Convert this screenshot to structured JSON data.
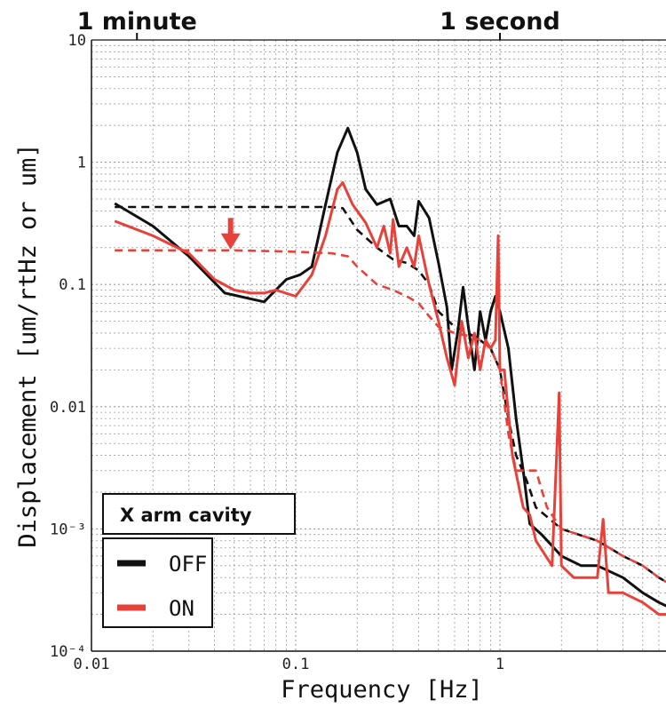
{
  "chart_data": {
    "type": "line",
    "title": "",
    "xlabel": "Frequency [Hz]",
    "ylabel": "Displacement [um/rtHz or um]",
    "x_scale": "log",
    "y_scale": "log",
    "xlim": [
      0.01,
      8
    ],
    "ylim": [
      0.0001,
      10
    ],
    "grid": true,
    "x_ticks": [
      {
        "value": 0.01,
        "label": "0.01"
      },
      {
        "value": 0.1,
        "label": "0.1"
      },
      {
        "value": 1,
        "label": "1"
      }
    ],
    "y_ticks": [
      {
        "value": 0.0001,
        "label": "10⁻⁴"
      },
      {
        "value": 0.001,
        "label": "10⁻³"
      },
      {
        "value": 0.01,
        "label": "0.01"
      },
      {
        "value": 0.1,
        "label": "0.1"
      },
      {
        "value": 1,
        "label": "1"
      },
      {
        "value": 10,
        "label": "10"
      }
    ],
    "top_annotations": [
      {
        "x": 0.0167,
        "label": "1 minute"
      },
      {
        "x": 1.0,
        "label": "1 second"
      }
    ],
    "legend": {
      "title": "X arm cavity",
      "placement": "bottom-left",
      "entries": [
        {
          "label": "OFF",
          "color": "#111111"
        },
        {
          "label": "ON",
          "color": "#e8413a"
        }
      ]
    },
    "arrow_annotation": {
      "x": 0.048,
      "y_from": 0.35,
      "y_to": 0.2,
      "color": "#e8413a"
    },
    "series": [
      {
        "color": "#111111",
        "style": "solid",
        "points": [
          [
            0.013,
            0.46
          ],
          [
            0.02,
            0.3
          ],
          [
            0.03,
            0.17
          ],
          [
            0.045,
            0.085
          ],
          [
            0.07,
            0.072
          ],
          [
            0.09,
            0.11
          ],
          [
            0.105,
            0.12
          ],
          [
            0.12,
            0.14
          ],
          [
            0.14,
            0.45
          ],
          [
            0.16,
            1.2
          ],
          [
            0.18,
            1.9
          ],
          [
            0.2,
            1.2
          ],
          [
            0.22,
            0.6
          ],
          [
            0.25,
            0.45
          ],
          [
            0.29,
            0.5
          ],
          [
            0.32,
            0.3
          ],
          [
            0.35,
            0.3
          ],
          [
            0.38,
            0.25
          ],
          [
            0.4,
            0.48
          ],
          [
            0.45,
            0.35
          ],
          [
            0.5,
            0.15
          ],
          [
            0.55,
            0.065
          ],
          [
            0.58,
            0.02
          ],
          [
            0.62,
            0.04
          ],
          [
            0.66,
            0.095
          ],
          [
            0.7,
            0.045
          ],
          [
            0.75,
            0.02
          ],
          [
            0.8,
            0.06
          ],
          [
            0.85,
            0.035
          ],
          [
            0.9,
            0.06
          ],
          [
            0.95,
            0.08
          ],
          [
            1.0,
            0.06
          ],
          [
            1.1,
            0.03
          ],
          [
            1.2,
            0.008
          ],
          [
            1.3,
            0.003
          ],
          [
            1.4,
            0.0011
          ],
          [
            1.6,
            0.0009
          ],
          [
            2.0,
            0.0006
          ],
          [
            2.5,
            0.0005
          ],
          [
            3.0,
            0.0005
          ],
          [
            4.0,
            0.0004
          ],
          [
            5.0,
            0.0003
          ],
          [
            6.0,
            0.00025
          ],
          [
            8.0,
            0.0002
          ]
        ]
      },
      {
        "color": "#111111",
        "style": "dashed",
        "points": [
          [
            0.013,
            0.43
          ],
          [
            0.05,
            0.43
          ],
          [
            0.1,
            0.43
          ],
          [
            0.15,
            0.43
          ],
          [
            0.17,
            0.42
          ],
          [
            0.2,
            0.28
          ],
          [
            0.25,
            0.2
          ],
          [
            0.3,
            0.16
          ],
          [
            0.35,
            0.15
          ],
          [
            0.4,
            0.13
          ],
          [
            0.45,
            0.1
          ],
          [
            0.5,
            0.06
          ],
          [
            0.6,
            0.045
          ],
          [
            0.7,
            0.04
          ],
          [
            0.8,
            0.035
          ],
          [
            0.9,
            0.03
          ],
          [
            1.0,
            0.02
          ],
          [
            1.1,
            0.008
          ],
          [
            1.2,
            0.004
          ],
          [
            1.35,
            0.0025
          ],
          [
            1.5,
            0.0015
          ],
          [
            2.0,
            0.001
          ],
          [
            3.0,
            0.0008
          ],
          [
            4.0,
            0.0006
          ],
          [
            5.0,
            0.0005
          ],
          [
            6.0,
            0.0004
          ],
          [
            8.0,
            0.0003
          ]
        ]
      },
      {
        "color": "#e8413a",
        "style": "solid",
        "points": [
          [
            0.013,
            0.33
          ],
          [
            0.02,
            0.25
          ],
          [
            0.03,
            0.18
          ],
          [
            0.04,
            0.11
          ],
          [
            0.05,
            0.09
          ],
          [
            0.06,
            0.085
          ],
          [
            0.07,
            0.085
          ],
          [
            0.08,
            0.09
          ],
          [
            0.1,
            0.08
          ],
          [
            0.12,
            0.12
          ],
          [
            0.14,
            0.25
          ],
          [
            0.16,
            0.6
          ],
          [
            0.17,
            0.68
          ],
          [
            0.19,
            0.45
          ],
          [
            0.22,
            0.32
          ],
          [
            0.25,
            0.2
          ],
          [
            0.27,
            0.3
          ],
          [
            0.29,
            0.18
          ],
          [
            0.3,
            0.34
          ],
          [
            0.32,
            0.14
          ],
          [
            0.35,
            0.2
          ],
          [
            0.38,
            0.14
          ],
          [
            0.4,
            0.25
          ],
          [
            0.45,
            0.1
          ],
          [
            0.5,
            0.05
          ],
          [
            0.55,
            0.025
          ],
          [
            0.6,
            0.015
          ],
          [
            0.65,
            0.05
          ],
          [
            0.7,
            0.025
          ],
          [
            0.75,
            0.04
          ],
          [
            0.8,
            0.02
          ],
          [
            0.85,
            0.035
          ],
          [
            0.9,
            0.03
          ],
          [
            0.95,
            0.035
          ],
          [
            0.98,
            0.25
          ],
          [
            1.0,
            0.02
          ],
          [
            1.05,
            0.02
          ],
          [
            1.15,
            0.004
          ],
          [
            1.3,
            0.0015
          ],
          [
            1.4,
            0.0013
          ],
          [
            1.5,
            0.0008
          ],
          [
            1.8,
            0.0005
          ],
          [
            1.95,
            0.013
          ],
          [
            2.0,
            0.0005
          ],
          [
            2.3,
            0.0004
          ],
          [
            2.6,
            0.0004
          ],
          [
            3.0,
            0.0004
          ],
          [
            3.2,
            0.0012
          ],
          [
            3.4,
            0.0003
          ],
          [
            4.0,
            0.0003
          ],
          [
            5.0,
            0.00025
          ],
          [
            6.0,
            0.0002
          ],
          [
            8.0,
            0.0002
          ]
        ]
      },
      {
        "color": "#e8413a",
        "style": "dashed",
        "points": [
          [
            0.013,
            0.19
          ],
          [
            0.05,
            0.19
          ],
          [
            0.1,
            0.185
          ],
          [
            0.15,
            0.18
          ],
          [
            0.18,
            0.17
          ],
          [
            0.2,
            0.14
          ],
          [
            0.25,
            0.1
          ],
          [
            0.3,
            0.09
          ],
          [
            0.35,
            0.08
          ],
          [
            0.4,
            0.07
          ],
          [
            0.45,
            0.055
          ],
          [
            0.5,
            0.045
          ],
          [
            0.6,
            0.04
          ],
          [
            0.7,
            0.038
          ],
          [
            0.8,
            0.035
          ],
          [
            0.9,
            0.03
          ],
          [
            1.0,
            0.02
          ],
          [
            1.1,
            0.006
          ],
          [
            1.2,
            0.003
          ],
          [
            1.5,
            0.003
          ],
          [
            1.7,
            0.0015
          ],
          [
            2.0,
            0.001
          ],
          [
            3.0,
            0.0008
          ],
          [
            4.0,
            0.0006
          ],
          [
            5.0,
            0.0005
          ],
          [
            6.0,
            0.0004
          ],
          [
            8.0,
            0.0003
          ]
        ]
      }
    ]
  }
}
